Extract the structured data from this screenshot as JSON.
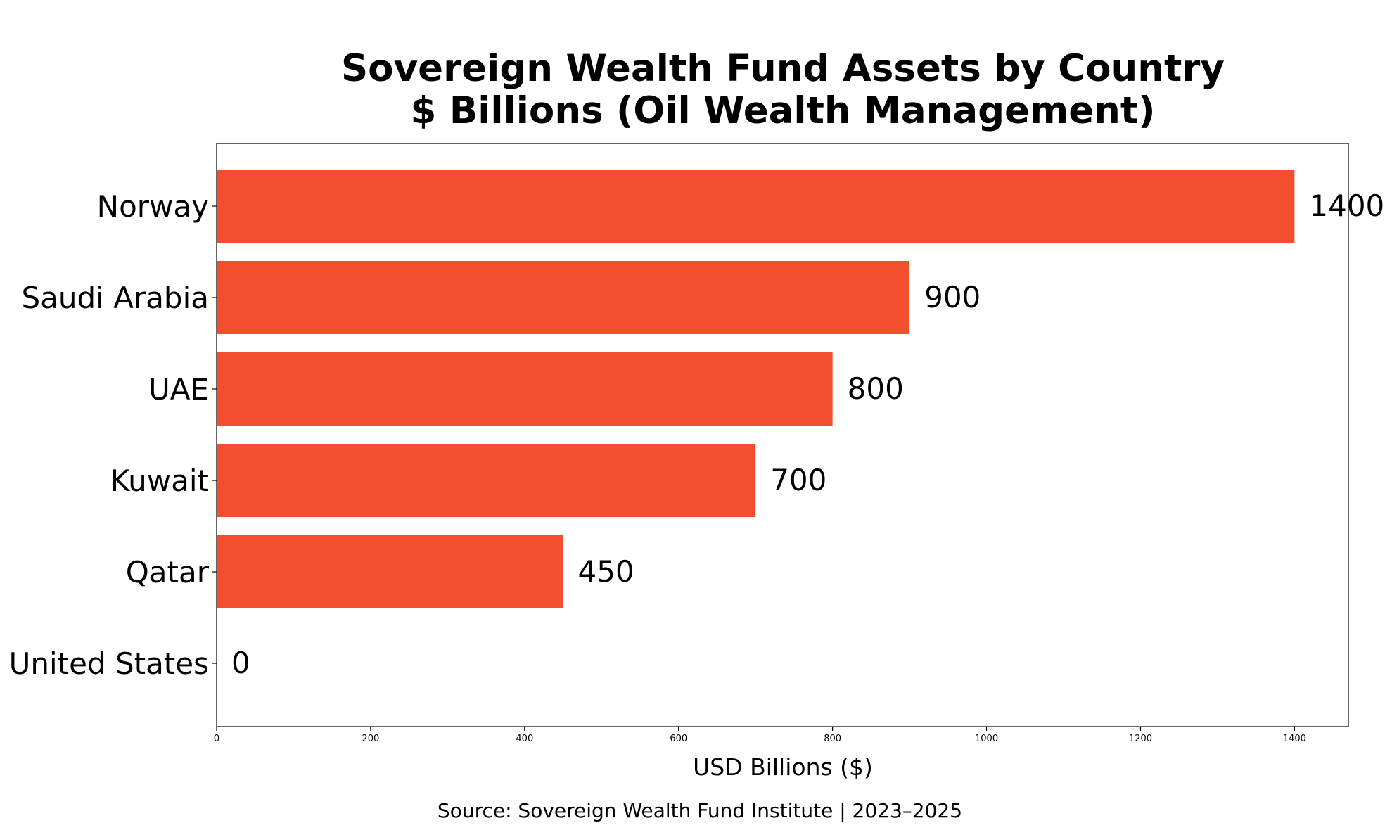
{
  "chart_data": {
    "type": "bar",
    "orientation": "horizontal",
    "title": "Sovereign Wealth Fund Assets by Country",
    "subtitle": "$ Billions (Oil Wealth Management)",
    "xlabel": "USD Billions ($)",
    "ylabel": "",
    "source": "Source: Sovereign Wealth Fund Institute | 2023–2025",
    "categories": [
      "Norway",
      "Saudi Arabia",
      "UAE",
      "Kuwait",
      "Qatar",
      "United States"
    ],
    "values": [
      1400,
      900,
      800,
      700,
      450,
      0
    ],
    "data_labels": [
      "1400",
      "900",
      "800",
      "700",
      "450",
      "0"
    ],
    "xlim": [
      0,
      1470
    ],
    "xticks": [
      0,
      200,
      400,
      600,
      800,
      1000,
      1200,
      1400
    ],
    "bar_color": "#f34f2f",
    "grid": false,
    "legend": "none"
  }
}
